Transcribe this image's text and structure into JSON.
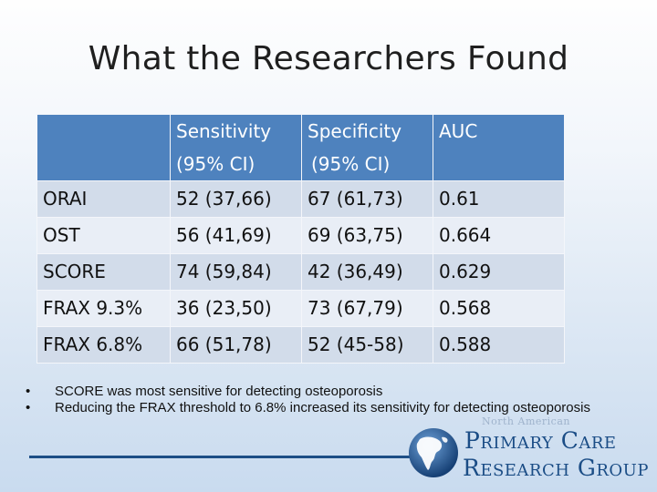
{
  "slide": {
    "title": "What the Researchers Found"
  },
  "table": {
    "headers": [
      {
        "line1": "",
        "line2": ""
      },
      {
        "line1": "Sensitivity",
        "line2": "(95% CI)"
      },
      {
        "line1": "Specificity",
        "line2": "(95% CI)"
      },
      {
        "line1": "AUC",
        "line2": ""
      }
    ],
    "rows": [
      [
        "ORAI",
        "52 (37,66)",
        "67 (61,73)",
        "0.61"
      ],
      [
        "OST",
        "56 (41,69)",
        "69 (63,75)",
        "0.664"
      ],
      [
        "SCORE",
        "74 (59,84)",
        "42 (36,49)",
        "0.629"
      ],
      [
        "FRAX 9.3%",
        "36 (23,50)",
        "73 (67,79)",
        "0.568"
      ],
      [
        "FRAX 6.8%",
        "66 (51,78)",
        "52 (45-58)",
        "0.588"
      ]
    ]
  },
  "bullets": [
    "SCORE was most sensitive for detecting osteoporosis",
    "Reducing the FRAX threshold to 6.8% increased its sensitivity for detecting osteoporosis"
  ],
  "bullet_symbol": "•",
  "logo": {
    "tagline": "North American",
    "line1": "Primary Care",
    "line2": "Research Group",
    "icon": "globe-icon"
  },
  "colors": {
    "header_fill": "#4e82be",
    "row_fill_dark": "#d2dcea",
    "row_fill_light": "#e9eef6",
    "brand_blue": "#1b4d86"
  }
}
